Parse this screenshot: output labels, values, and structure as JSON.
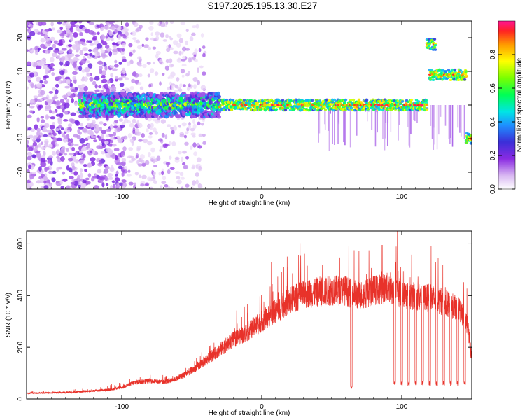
{
  "title": "S197.2025.195.13.30.E27",
  "chart_data": [
    {
      "type": "heatmap",
      "xlabel": "Height of straight line (km)",
      "ylabel": "Frequency (Hz)",
      "xlim": [
        -168,
        150
      ],
      "ylim": [
        -25,
        25
      ],
      "xticks": [
        -100,
        0,
        100
      ],
      "yticks": [
        -20,
        -10,
        0,
        10,
        20
      ],
      "colorbar": {
        "label": "Normalized spectral amplitude",
        "range": [
          0,
          1
        ],
        "ticks": [
          0.0,
          0.2,
          0.4,
          0.6,
          0.8
        ]
      },
      "ridges": [
        {
          "x_start": -130,
          "x_end": 118,
          "frequency": 0
        },
        {
          "x_start": 120,
          "x_end": 146,
          "frequency": 9
        },
        {
          "x_start": 118,
          "x_end": 124,
          "frequency": 18
        },
        {
          "x_start": 146,
          "x_end": 150,
          "frequency": -10
        }
      ],
      "grid": false
    },
    {
      "type": "line",
      "xlabel": "Height of straight line (km)",
      "ylabel": "SNR (10 * v/v)",
      "xlim": [
        -168,
        150
      ],
      "ylim": [
        0,
        650
      ],
      "xticks": [
        -100,
        0,
        100
      ],
      "yticks": [
        0,
        200,
        400,
        600
      ],
      "color": "#e8322a",
      "envelope": [
        [
          -168,
          22
        ],
        [
          -140,
          25
        ],
        [
          -110,
          35
        ],
        [
          -100,
          45
        ],
        [
          -90,
          65
        ],
        [
          -80,
          70
        ],
        [
          -70,
          65
        ],
        [
          -60,
          80
        ],
        [
          -50,
          110
        ],
        [
          -40,
          150
        ],
        [
          -30,
          190
        ],
        [
          -20,
          230
        ],
        [
          -10,
          260
        ],
        [
          0,
          300
        ],
        [
          10,
          340
        ],
        [
          20,
          380
        ],
        [
          30,
          405
        ],
        [
          40,
          415
        ],
        [
          50,
          420
        ],
        [
          60,
          420
        ],
        [
          63,
          410
        ],
        [
          70,
          400
        ],
        [
          80,
          420
        ],
        [
          90,
          430
        ],
        [
          96,
          420
        ],
        [
          100,
          405
        ],
        [
          110,
          395
        ],
        [
          120,
          390
        ],
        [
          130,
          375
        ],
        [
          140,
          350
        ],
        [
          147,
          290
        ],
        [
          150,
          150
        ]
      ],
      "dips": [
        {
          "x": 64,
          "value": 40
        },
        {
          "x": 95,
          "value": 55
        },
        {
          "x": 100,
          "value": 50
        },
        {
          "x": 105,
          "value": 50
        },
        {
          "x": 110,
          "value": 50
        },
        {
          "x": 115,
          "value": 50
        },
        {
          "x": 120,
          "value": 50
        },
        {
          "x": 125,
          "value": 50
        },
        {
          "x": 130,
          "value": 50
        },
        {
          "x": 135,
          "value": 50
        },
        {
          "x": 140,
          "value": 50
        },
        {
          "x": 145,
          "value": 50
        }
      ],
      "spikes": [
        {
          "x": 7,
          "value": 530
        },
        {
          "x": 86,
          "value": 595
        },
        {
          "x": 97,
          "value": 650
        }
      ],
      "grid": false
    }
  ]
}
